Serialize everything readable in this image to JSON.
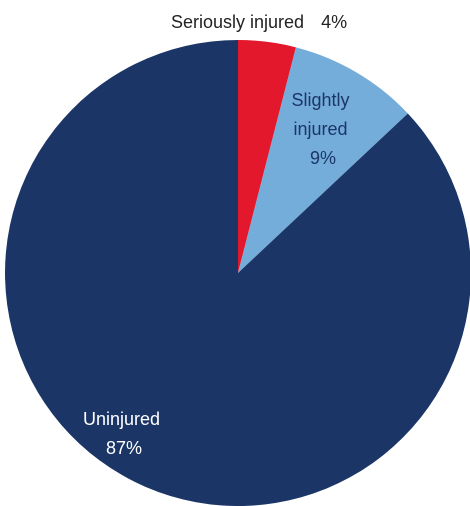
{
  "chart_data": {
    "type": "pie",
    "start_angle_deg": 0,
    "direction": "clockwise",
    "slices": [
      {
        "label": "Seriously injured",
        "value": 4,
        "value_label": "4%",
        "color": "#E3182D"
      },
      {
        "label": "Slightly injured",
        "value": 9,
        "value_label": "9%",
        "color": "#75ADDA"
      },
      {
        "label": "Uninjured",
        "value": 87,
        "value_label": "87%",
        "color": "#1B3666"
      }
    ],
    "data_label_colors": {
      "outside": "#222222",
      "light_slice": "#1B3666",
      "dark_slice": "#ffffff"
    }
  }
}
